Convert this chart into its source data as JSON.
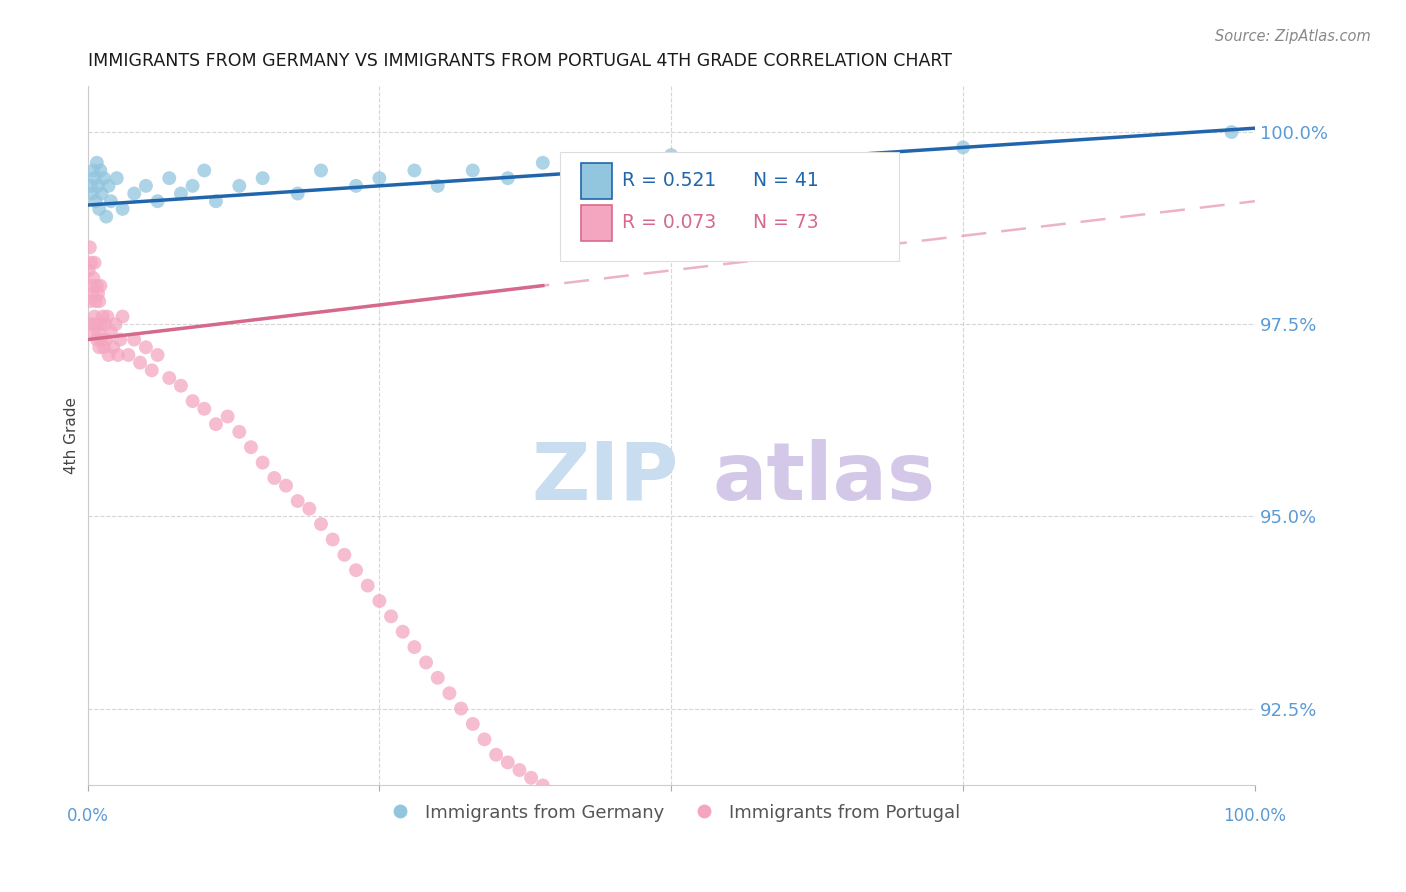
{
  "title": "IMMIGRANTS FROM GERMANY VS IMMIGRANTS FROM PORTUGAL 4TH GRADE CORRELATION CHART",
  "source": "Source: ZipAtlas.com",
  "ylabel": "4th Grade",
  "ytick_labels": [
    "92.5%",
    "95.0%",
    "97.5%",
    "100.0%"
  ],
  "ytick_values": [
    92.5,
    95.0,
    97.5,
    100.0
  ],
  "xmin": 0.0,
  "xmax": 100.0,
  "ymin": 91.5,
  "ymax": 100.6,
  "legend_r_germany": "R = 0.521",
  "legend_n_germany": "N = 41",
  "legend_r_portugal": "R = 0.073",
  "legend_n_portugal": "N = 73",
  "legend_label_germany": "Immigrants from Germany",
  "legend_label_portugal": "Immigrants from Portugal",
  "color_germany": "#92c5de",
  "color_portugal": "#f4a6c0",
  "color_germany_line": "#2166ac",
  "color_portugal_line": "#d6698a",
  "color_portugal_dashed": "#e8a0b8",
  "axis_label_color": "#5b9bd5",
  "watermark_zip_color": "#c8ddf0",
  "watermark_atlas_color": "#d4c8e8",
  "germany_x": [
    0.3,
    0.4,
    0.5,
    0.6,
    0.7,
    0.8,
    0.9,
    1.0,
    1.1,
    1.2,
    1.4,
    1.6,
    1.8,
    2.0,
    2.5,
    3.0,
    4.0,
    5.0,
    6.0,
    7.0,
    8.0,
    9.0,
    10.0,
    11.0,
    13.0,
    15.0,
    18.0,
    20.0,
    23.0,
    25.0,
    28.0,
    30.0,
    33.0,
    36.0,
    39.0,
    42.0,
    45.0,
    50.0,
    62.0,
    75.0,
    98.0
  ],
  "germany_y": [
    99.3,
    99.2,
    99.5,
    99.4,
    99.1,
    99.6,
    99.3,
    99.0,
    99.5,
    99.2,
    99.4,
    98.9,
    99.3,
    99.1,
    99.4,
    99.0,
    99.2,
    99.3,
    99.1,
    99.4,
    99.2,
    99.3,
    99.5,
    99.1,
    99.3,
    99.4,
    99.2,
    99.5,
    99.3,
    99.4,
    99.5,
    99.3,
    99.5,
    99.4,
    99.6,
    99.5,
    99.6,
    99.7,
    99.5,
    99.8,
    100.0
  ],
  "portugal_x": [
    0.1,
    0.2,
    0.2,
    0.3,
    0.3,
    0.4,
    0.4,
    0.5,
    0.5,
    0.6,
    0.6,
    0.7,
    0.7,
    0.8,
    0.8,
    0.9,
    0.9,
    1.0,
    1.0,
    1.1,
    1.1,
    1.2,
    1.3,
    1.4,
    1.5,
    1.6,
    1.7,
    1.8,
    2.0,
    2.2,
    2.4,
    2.6,
    2.8,
    3.0,
    3.5,
    4.0,
    4.5,
    5.0,
    5.5,
    6.0,
    7.0,
    8.0,
    9.0,
    10.0,
    11.0,
    12.0,
    13.0,
    14.0,
    15.0,
    16.0,
    17.0,
    18.0,
    19.0,
    20.0,
    21.0,
    22.0,
    23.0,
    24.0,
    25.0,
    26.0,
    27.0,
    28.0,
    29.0,
    30.0,
    31.0,
    32.0,
    33.0,
    34.0,
    35.0,
    36.0,
    37.0,
    38.0,
    39.0
  ],
  "portugal_y": [
    98.2,
    97.8,
    98.5,
    97.5,
    98.3,
    97.9,
    98.0,
    97.4,
    98.1,
    97.6,
    98.3,
    97.5,
    97.8,
    97.3,
    98.0,
    97.4,
    97.9,
    97.2,
    97.8,
    97.5,
    98.0,
    97.3,
    97.6,
    97.2,
    97.5,
    97.3,
    97.6,
    97.1,
    97.4,
    97.2,
    97.5,
    97.1,
    97.3,
    97.6,
    97.1,
    97.3,
    97.0,
    97.2,
    96.9,
    97.1,
    96.8,
    96.7,
    96.5,
    96.4,
    96.2,
    96.3,
    96.1,
    95.9,
    95.7,
    95.5,
    95.4,
    95.2,
    95.1,
    94.9,
    94.7,
    94.5,
    94.3,
    94.1,
    93.9,
    93.7,
    93.5,
    93.3,
    93.1,
    92.9,
    92.7,
    92.5,
    92.3,
    92.1,
    91.9,
    91.8,
    91.7,
    91.6,
    91.5
  ],
  "germany_line_x0": 0.0,
  "germany_line_x1": 100.0,
  "portugal_solid_x0": 0.0,
  "portugal_solid_x1": 39.0,
  "portugal_dashed_x0": 0.0,
  "portugal_dashed_x1": 100.0
}
